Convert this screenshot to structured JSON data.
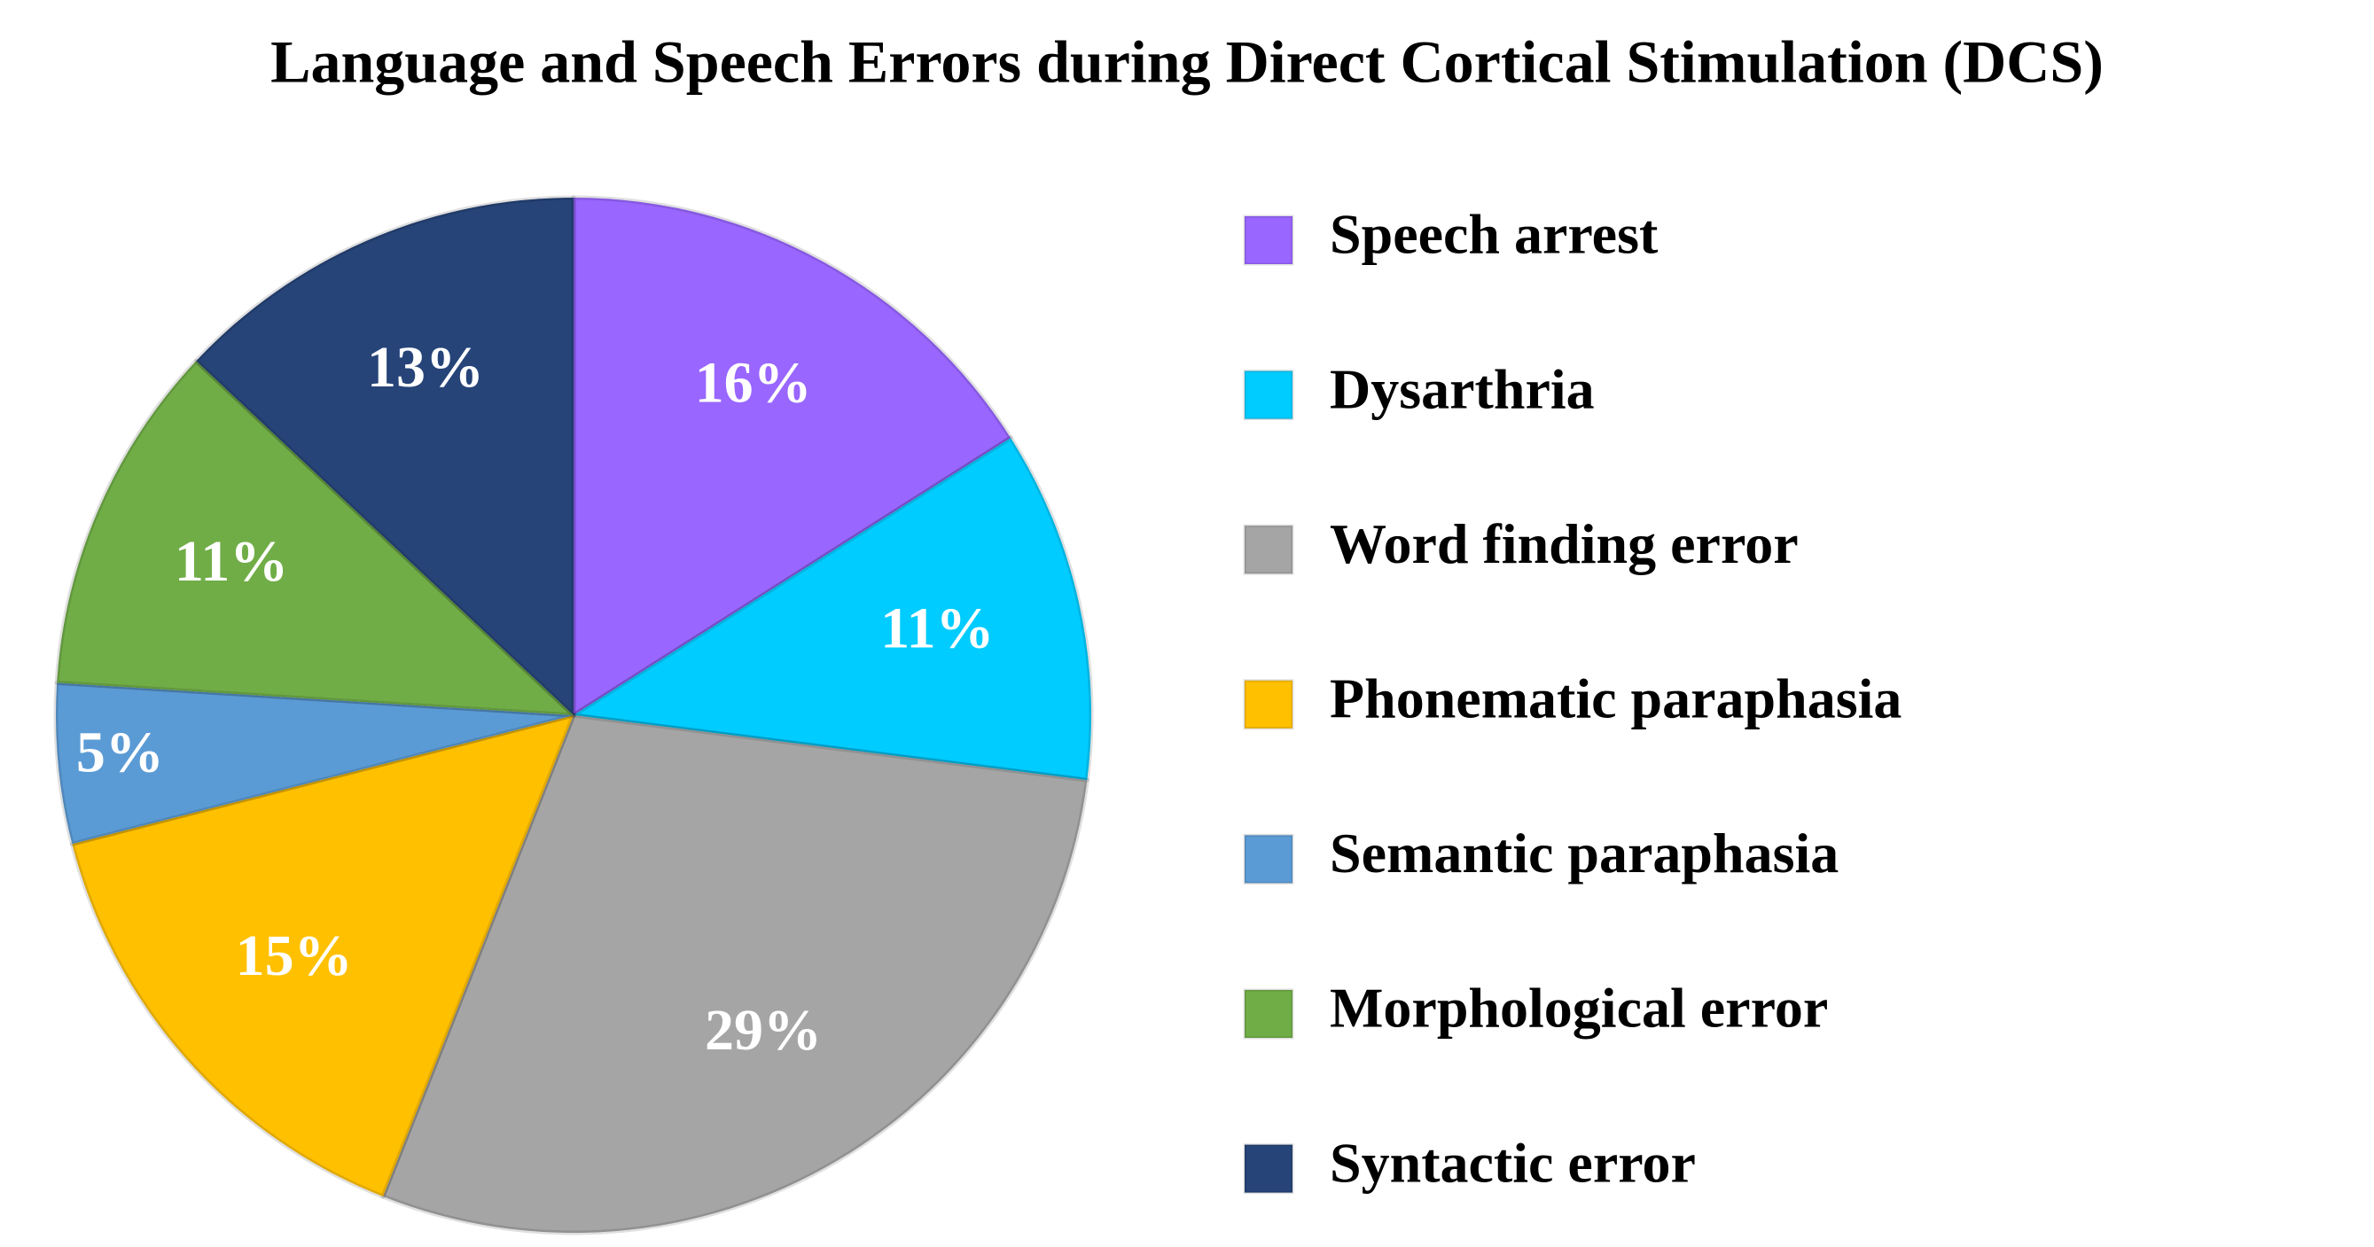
{
  "chart_data": {
    "type": "pie",
    "title": "Language and Speech Errors during Direct Cortical Stimulation (DCS)",
    "categories": [
      "Speech arrest",
      "Dysarthria",
      "Word finding error",
      "Phonematic paraphasia",
      "Semantic paraphasia",
      "Morphological error",
      "Syntactic error"
    ],
    "values": [
      16,
      11,
      29,
      15,
      5,
      11,
      13
    ],
    "value_labels": [
      "16%",
      "11%",
      "29%",
      "15%",
      "5%",
      "11%",
      "13%"
    ],
    "colors": [
      "#9966ff",
      "#00ccff",
      "#a5a5a5",
      "#ffc000",
      "#5b9bd5",
      "#70ad47",
      "#264478"
    ],
    "legend": "right"
  }
}
